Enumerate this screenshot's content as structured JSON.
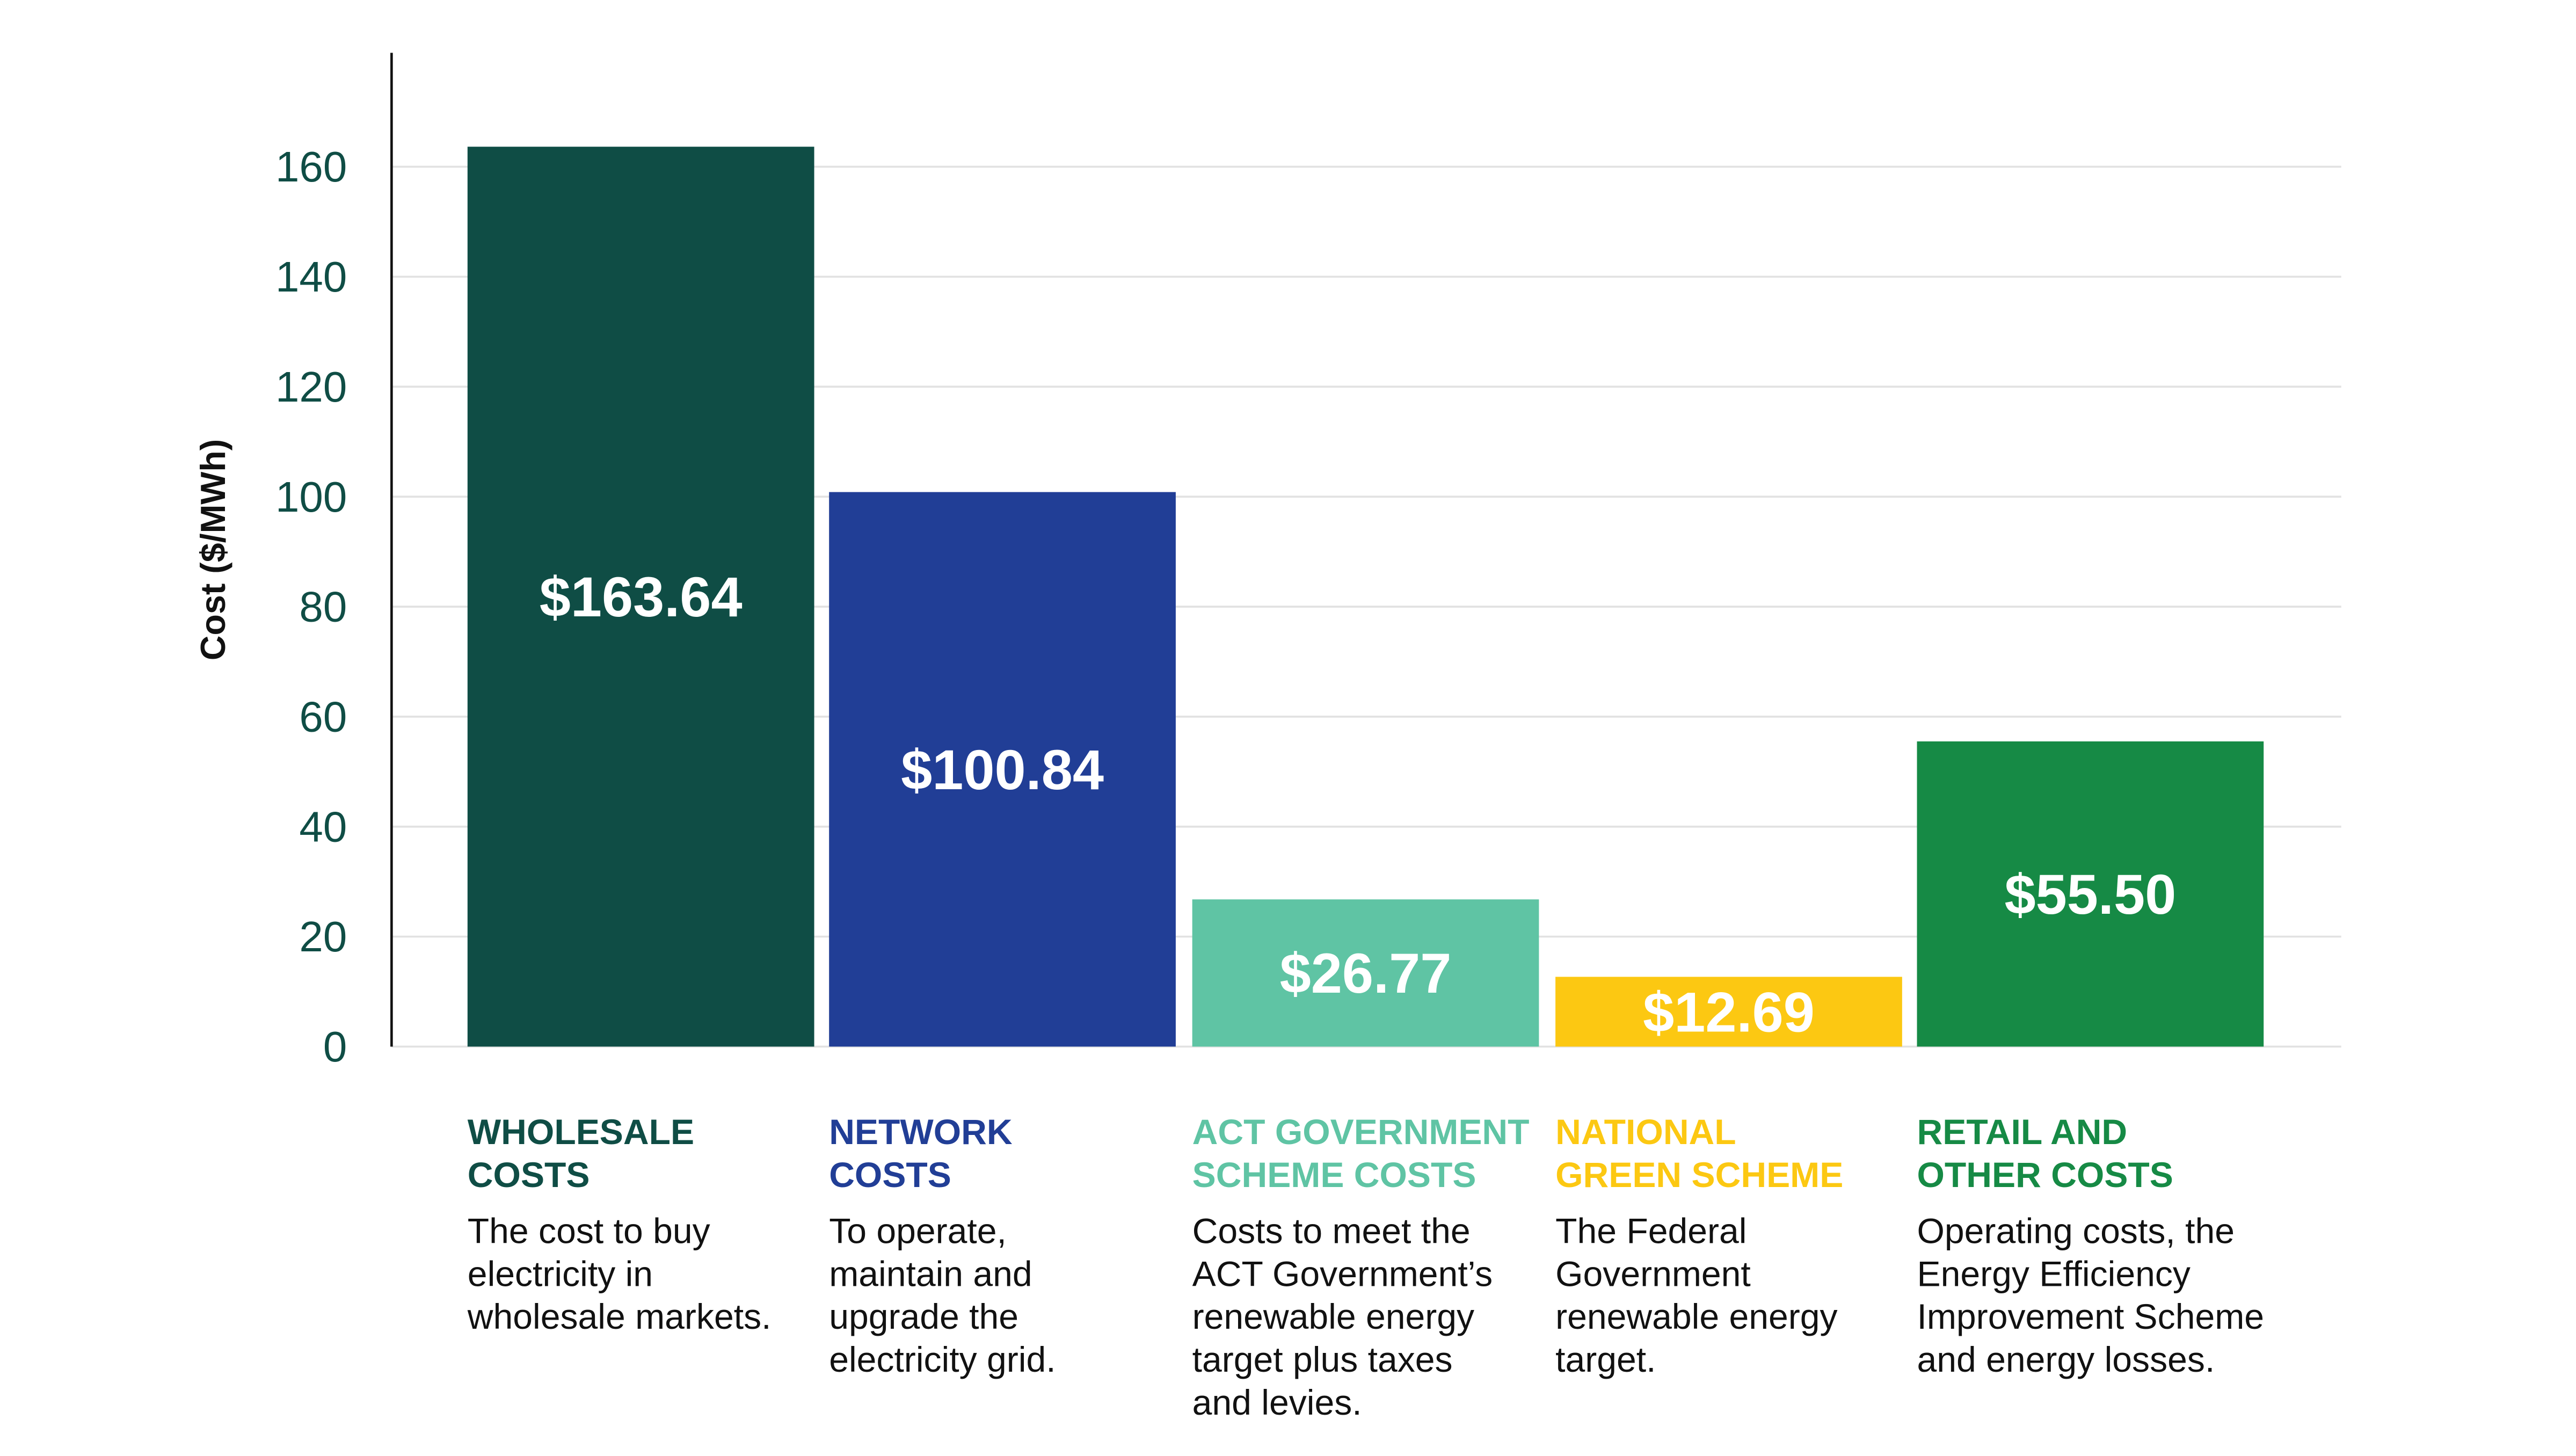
{
  "chart_data": {
    "type": "bar",
    "ylabel": "Cost ($/MWh)",
    "ylim": [
      0,
      180
    ],
    "yticks": [
      0,
      20,
      40,
      60,
      80,
      100,
      120,
      140,
      160
    ],
    "grid": true,
    "categories": [
      {
        "title": [
          "WHOLESALE",
          "COSTS"
        ],
        "desc": [
          "The cost to buy",
          "electricity in",
          "wholesale markets."
        ],
        "value": 163.64,
        "label": "$163.64",
        "color": "#0f4d45"
      },
      {
        "title": [
          "NETWORK",
          "COSTS"
        ],
        "desc": [
          "To operate,",
          "maintain and",
          "upgrade the",
          "electricity grid."
        ],
        "value": 100.84,
        "label": "$100.84",
        "color": "#213e96"
      },
      {
        "title": [
          "ACT GOVERNMENT",
          "SCHEME COSTS"
        ],
        "desc": [
          "Costs to meet the",
          "ACT Government’s",
          "renewable energy",
          "target plus taxes",
          "and levies."
        ],
        "value": 26.77,
        "label": "$26.77",
        "color": "#5fc4a4"
      },
      {
        "title": [
          "NATIONAL",
          "GREEN SCHEME"
        ],
        "desc": [
          "The Federal",
          "Government",
          "renewable energy",
          "target."
        ],
        "value": 12.69,
        "label": "$12.69",
        "color": "#fcc812"
      },
      {
        "title": [
          "RETAIL AND",
          "OTHER COSTS"
        ],
        "desc": [
          "Operating costs, the",
          "Energy Efficiency",
          "Improvement Scheme",
          "and energy losses."
        ],
        "value": 55.5,
        "label": "$55.50",
        "color": "#168a45"
      }
    ]
  }
}
